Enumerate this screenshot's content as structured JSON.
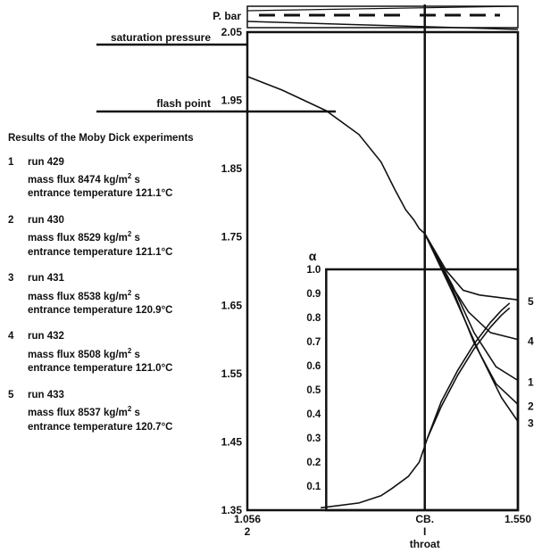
{
  "chart_data": {
    "type": "line",
    "title": "",
    "pressure_axis": {
      "label": "P. bar",
      "ticks": [
        1.35,
        1.45,
        1.55,
        1.65,
        1.75,
        1.85,
        1.95,
        2.05
      ],
      "tick_labels": [
        "1.35",
        "1.45",
        "1.55",
        "1.65",
        "1.75",
        "1.85",
        "1.95",
        "2.05"
      ],
      "ylim": [
        1.35,
        2.05
      ]
    },
    "void_axis": {
      "label": "α",
      "ticks": [
        0.1,
        0.2,
        0.3,
        0.4,
        0.5,
        0.6,
        0.7,
        0.8,
        0.9,
        1.0
      ],
      "tick_labels": [
        "0.1",
        "0.2",
        "0.3",
        "0.4",
        "0.5",
        "0.6",
        "0.7",
        "0.8",
        "0.9",
        "1.0"
      ],
      "ylim": [
        0.0,
        1.0
      ]
    },
    "x_axis": {
      "xlim": [
        1.056,
        1.55
      ],
      "left_label": "1.056",
      "left_sublabel": "2",
      "right_label": "1.550",
      "throat_label": "CB.",
      "throat_mark": "I",
      "throat_sublabel": "throat",
      "throat_x": 1.38
    },
    "annotations": {
      "saturation_pressure": "saturation pressure",
      "flash_point": "flash point"
    },
    "pressure_common": {
      "x": [
        1.056,
        1.12,
        1.2,
        1.26,
        1.3,
        1.325,
        1.345,
        1.36,
        1.37,
        1.38
      ],
      "y": [
        1.985,
        1.965,
        1.935,
        1.9,
        1.86,
        1.82,
        1.79,
        1.775,
        1.762,
        1.755
      ]
    },
    "pressure_series": [
      {
        "name": "5",
        "x": [
          1.38,
          1.42,
          1.45,
          1.48,
          1.55
        ],
        "y": [
          1.755,
          1.7,
          1.672,
          1.665,
          1.658
        ]
      },
      {
        "name": "4",
        "x": [
          1.38,
          1.42,
          1.46,
          1.5,
          1.55
        ],
        "y": [
          1.755,
          1.69,
          1.64,
          1.61,
          1.6
        ]
      },
      {
        "name": "1",
        "x": [
          1.38,
          1.43,
          1.47,
          1.51,
          1.55
        ],
        "y": [
          1.755,
          1.68,
          1.61,
          1.56,
          1.54
        ]
      },
      {
        "name": "2",
        "x": [
          1.38,
          1.43,
          1.47,
          1.51,
          1.55
        ],
        "y": [
          1.755,
          1.675,
          1.595,
          1.535,
          1.505
        ]
      },
      {
        "name": "3",
        "x": [
          1.38,
          1.43,
          1.48,
          1.52,
          1.55
        ],
        "y": [
          1.755,
          1.67,
          1.58,
          1.515,
          1.48
        ]
      }
    ],
    "void_series": [
      {
        "x": [
          1.19,
          1.26,
          1.3,
          1.32,
          1.35,
          1.37,
          1.385,
          1.41,
          1.44,
          1.47,
          1.5,
          1.52,
          1.535
        ],
        "y": [
          0.01,
          0.03,
          0.06,
          0.09,
          0.14,
          0.2,
          0.3,
          0.45,
          0.58,
          0.69,
          0.78,
          0.83,
          0.86
        ]
      },
      {
        "x": [
          1.385,
          1.41,
          1.44,
          1.47,
          1.5,
          1.52,
          1.535
        ],
        "y": [
          0.3,
          0.43,
          0.56,
          0.67,
          0.76,
          0.81,
          0.84
        ]
      }
    ],
    "overlay_box": {
      "x": [
        1.2,
        1.55
      ],
      "y": [
        0.0,
        1.0
      ]
    }
  },
  "legend": {
    "title": "Results of the Moby Dick experiments",
    "runs": [
      {
        "num": "1",
        "run": "run 429",
        "flux_label": "mass flux 8474 kg/m",
        "flux_unit": "s",
        "temp": "entrance temperature 121.1°C"
      },
      {
        "num": "2",
        "run": "run 430",
        "flux_label": "mass flux 8529 kg/m",
        "flux_unit": "s",
        "temp": "entrance temperature 121.1°C"
      },
      {
        "num": "3",
        "run": "run 431",
        "flux_label": "mass flux 8538 kg/m",
        "flux_unit": "s",
        "temp": "entrance temperature 120.9°C"
      },
      {
        "num": "4",
        "run": "run 432",
        "flux_label": "mass flux 8508 kg/m",
        "flux_unit": "s",
        "temp": "entrance temperature 121.0°C"
      },
      {
        "num": "5",
        "run": "run 433",
        "flux_label": "mass flux 8537 kg/m",
        "flux_unit": "s",
        "temp": "entrance temperature 120.7°C"
      }
    ],
    "superscript": "2"
  }
}
